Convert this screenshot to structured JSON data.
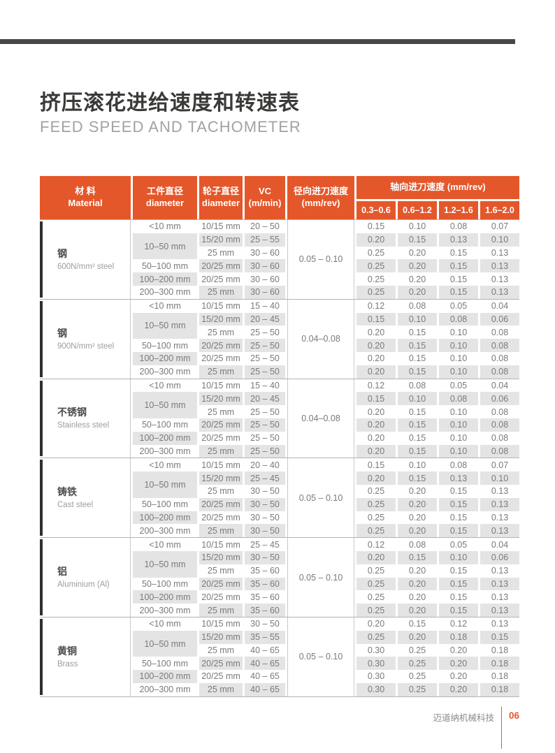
{
  "page": {
    "title_zh": "挤压滚花进给速度和转速表",
    "title_en": "FEED SPEED AND TACHOMETER",
    "footer_company": "迈道纳机械科技",
    "footer_page": "06"
  },
  "colors": {
    "accent_orange": "#E4572B",
    "row_stripe": "#E4E4E4",
    "group_bar": "#2F2F2F",
    "top_rule": "#474747",
    "separator": "#B3B3B3"
  },
  "table_header": {
    "material_zh": "材 料",
    "material_en": "Material",
    "workpiece_zh": "工件直径",
    "workpiece_en": "diameter",
    "wheel_zh": "轮子直径",
    "wheel_en": "diameter",
    "vc_line1": "VC",
    "vc_line2": "(m/min)",
    "radial_zh": "径向进刀速度",
    "radial_en": "(mm/rev)",
    "axial_title": "轴向进刀速度 (mm/rev)",
    "axial_cols": [
      "0.3–0.6",
      "0.6–1.2",
      "1.2–1.6",
      "1.6–2.0"
    ]
  },
  "groups": [
    {
      "material_zh": "钢",
      "material_en": "600N/mm² steel",
      "radial": "0.05 – 0.10",
      "rows": [
        {
          "wp": "<10 mm",
          "wheel": "10/15 mm",
          "vc": "20 – 50",
          "vals": [
            "0.15",
            "0.10",
            "0.08",
            "0.07"
          ]
        },
        {
          "wp": "10–50 mm",
          "wp_span": 2,
          "wheel": "15/20 mm",
          "vc": "25 – 55",
          "vals": [
            "0.20",
            "0.15",
            "0.13",
            "0.10"
          ]
        },
        {
          "wheel": "25 mm",
          "vc": "30 – 60",
          "vals": [
            "0.25",
            "0.20",
            "0.15",
            "0.13"
          ]
        },
        {
          "wp": "50–100 mm",
          "wheel": "20/25 mm",
          "vc": "30 – 60",
          "vals": [
            "0.25",
            "0.20",
            "0.15",
            "0.13"
          ]
        },
        {
          "wp": "100–200 mm",
          "wheel": "20/25 mm",
          "vc": "30 – 60",
          "vals": [
            "0.25",
            "0.20",
            "0.15",
            "0.13"
          ]
        },
        {
          "wp": "200–300 mm",
          "wheel": "25 mm",
          "vc": "30 – 60",
          "vals": [
            "0.25",
            "0.20",
            "0.15",
            "0.13"
          ]
        }
      ]
    },
    {
      "material_zh": "钢",
      "material_en": "900N/mm² steel",
      "radial": "0.04–0.08",
      "rows": [
        {
          "wp": "<10 mm",
          "wheel": "10/15 mm",
          "vc": "15 – 40",
          "vals": [
            "0.12",
            "0.08",
            "0.05",
            "0.04"
          ]
        },
        {
          "wp": "10–50 mm",
          "wp_span": 2,
          "wheel": "15/20 mm",
          "vc": "20 – 45",
          "vals": [
            "0.15",
            "0.10",
            "0.08",
            "0.06"
          ]
        },
        {
          "wheel": "25 mm",
          "vc": "25 – 50",
          "vals": [
            "0.20",
            "0.15",
            "0.10",
            "0.08"
          ]
        },
        {
          "wp": "50–100 mm",
          "wheel": "20/25 mm",
          "vc": "25 – 50",
          "vals": [
            "0.20",
            "0.15",
            "0.10",
            "0.08"
          ]
        },
        {
          "wp": "100–200 mm",
          "wheel": "20/25 mm",
          "vc": "25 – 50",
          "vals": [
            "0.20",
            "0.15",
            "0.10",
            "0.08"
          ]
        },
        {
          "wp": "200–300 mm",
          "wheel": "25 mm",
          "vc": "25 – 50",
          "vals": [
            "0.20",
            "0.15",
            "0.10",
            "0.08"
          ]
        }
      ]
    },
    {
      "material_zh": "不锈钢",
      "material_en": "Stainless steel",
      "radial": "0.04–0.08",
      "rows": [
        {
          "wp": "<10 mm",
          "wheel": "10/15 mm",
          "vc": "15 – 40",
          "vals": [
            "0.12",
            "0.08",
            "0.05",
            "0.04"
          ]
        },
        {
          "wp": "10–50 mm",
          "wp_span": 2,
          "wheel": "15/20 mm",
          "vc": "20 – 45",
          "vals": [
            "0.15",
            "0.10",
            "0.08",
            "0.06"
          ]
        },
        {
          "wheel": "25 mm",
          "vc": "25 – 50",
          "vals": [
            "0.20",
            "0.15",
            "0.10",
            "0.08"
          ]
        },
        {
          "wp": "50–100 mm",
          "wheel": "20/25 mm",
          "vc": "25 – 50",
          "vals": [
            "0.20",
            "0.15",
            "0.10",
            "0.08"
          ]
        },
        {
          "wp": "100–200 mm",
          "wheel": "20/25 mm",
          "vc": "25 – 50",
          "vals": [
            "0.20",
            "0.15",
            "0.10",
            "0.08"
          ]
        },
        {
          "wp": "200–300 mm",
          "wheel": "25 mm",
          "vc": "25 – 50",
          "vals": [
            "0.20",
            "0.15",
            "0.10",
            "0.08"
          ]
        }
      ]
    },
    {
      "material_zh": "铸铁",
      "material_en": "Cast steel",
      "radial": "0.05 – 0.10",
      "rows": [
        {
          "wp": "<10 mm",
          "wheel": "10/15 mm",
          "vc": "20 – 40",
          "vals": [
            "0.15",
            "0.10",
            "0.08",
            "0.07"
          ]
        },
        {
          "wp": "10–50 mm",
          "wp_span": 2,
          "wheel": "15/20 mm",
          "vc": "25 – 45",
          "vals": [
            "0.20",
            "0.15",
            "0.13",
            "0.10"
          ]
        },
        {
          "wheel": "25 mm",
          "vc": "30 – 50",
          "vals": [
            "0.25",
            "0.20",
            "0.15",
            "0.13"
          ]
        },
        {
          "wp": "50–100 mm",
          "wheel": "20/25 mm",
          "vc": "30 – 50",
          "vals": [
            "0.25",
            "0.20",
            "0.15",
            "0.13"
          ]
        },
        {
          "wp": "100–200 mm",
          "wheel": "20/25 mm",
          "vc": "30 – 50",
          "vals": [
            "0.25",
            "0.20",
            "0.15",
            "0.13"
          ]
        },
        {
          "wp": "200–300 mm",
          "wheel": "25 mm",
          "vc": "30 – 50",
          "vals": [
            "0.25",
            "0.20",
            "0.15",
            "0.13"
          ]
        }
      ]
    },
    {
      "material_zh": "铝",
      "material_en": "Aluminium (Al)",
      "radial": "0.05 – 0.10",
      "rows": [
        {
          "wp": "<10 mm",
          "wheel": "10/15 mm",
          "vc": "25 – 45",
          "vals": [
            "0.12",
            "0.08",
            "0.05",
            "0.04"
          ]
        },
        {
          "wp": "10–50 mm",
          "wp_span": 2,
          "wheel": "15/20 mm",
          "vc": "30 – 50",
          "vals": [
            "0.20",
            "0.15",
            "0.10",
            "0.06"
          ]
        },
        {
          "wheel": "25 mm",
          "vc": "35 – 60",
          "vals": [
            "0.25",
            "0.20",
            "0.15",
            "0.13"
          ]
        },
        {
          "wp": "50–100 mm",
          "wheel": "20/25 mm",
          "vc": "35 – 60",
          "vals": [
            "0.25",
            "0.20",
            "0.15",
            "0.13"
          ]
        },
        {
          "wp": "100–200 mm",
          "wheel": "20/25 mm",
          "vc": "35 – 60",
          "vals": [
            "0.25",
            "0.20",
            "0.15",
            "0.13"
          ]
        },
        {
          "wp": "200–300 mm",
          "wheel": "25 mm",
          "vc": "35 – 60",
          "vals": [
            "0.25",
            "0.20",
            "0.15",
            "0.13"
          ]
        }
      ]
    },
    {
      "material_zh": "黄铜",
      "material_en": "Brass",
      "radial": "0.05 – 0.10",
      "rows": [
        {
          "wp": "<10 mm",
          "wheel": "10/15 mm",
          "vc": "30 – 50",
          "vals": [
            "0.20",
            "0.15",
            "0.12",
            "0.13"
          ]
        },
        {
          "wp": "10–50 mm",
          "wp_span": 2,
          "wheel": "15/20 mm",
          "vc": "35 – 55",
          "vals": [
            "0.25",
            "0.20",
            "0.18",
            "0.15"
          ]
        },
        {
          "wheel": "25 mm",
          "vc": "40 – 65",
          "vals": [
            "0.30",
            "0.25",
            "0.20",
            "0.18"
          ]
        },
        {
          "wp": "50–100 mm",
          "wheel": "20/25 mm",
          "vc": "40 – 65",
          "vals": [
            "0.30",
            "0.25",
            "0.20",
            "0.18"
          ]
        },
        {
          "wp": "100–200 mm",
          "wheel": "20/25 mm",
          "vc": "40 – 65",
          "vals": [
            "0.30",
            "0.25",
            "0.20",
            "0.18"
          ]
        },
        {
          "wp": "200–300 mm",
          "wheel": "25 mm",
          "vc": "40 – 65",
          "vals": [
            "0.30",
            "0.25",
            "0.20",
            "0.18"
          ]
        }
      ]
    }
  ]
}
